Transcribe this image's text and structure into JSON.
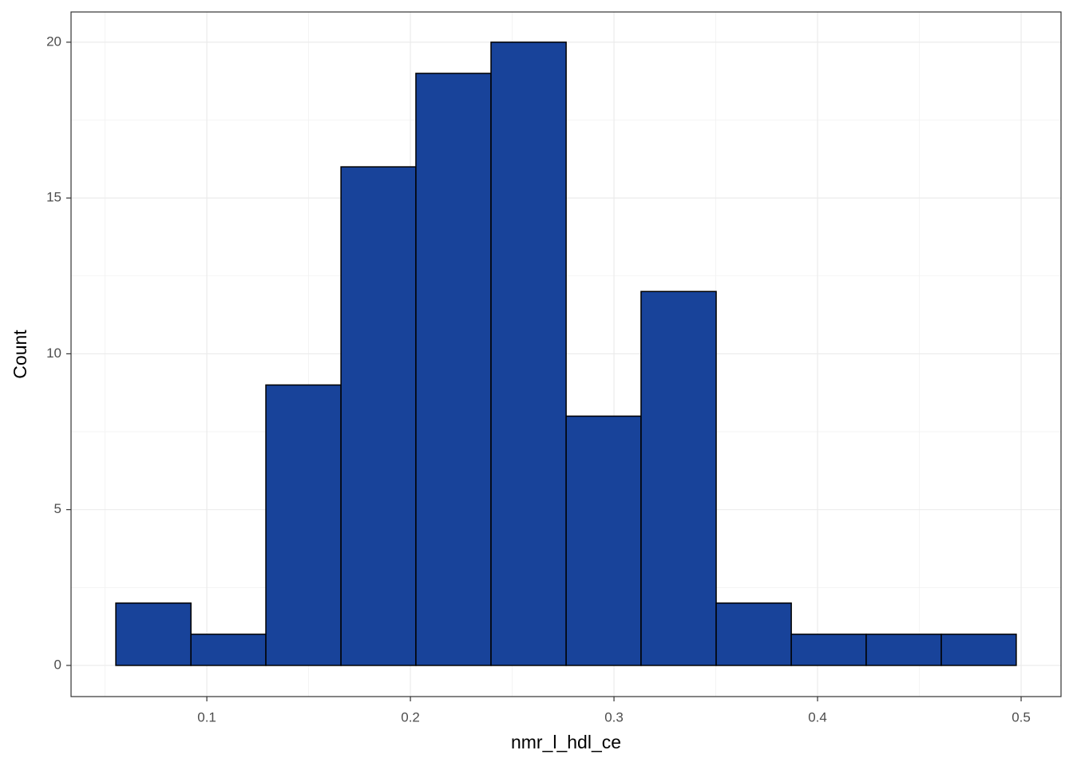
{
  "chart_data": {
    "type": "histogram",
    "x_label": "nmr_l_hdl_ce",
    "y_label": "Count",
    "bins": [
      0.0553,
      0.0922,
      0.129,
      0.1659,
      0.2027,
      0.2396,
      0.2765,
      0.3133,
      0.3502,
      0.3871,
      0.4239,
      0.4608,
      0.4976
    ],
    "values": [
      2,
      1,
      9,
      16,
      19,
      20,
      8,
      12,
      2,
      1,
      1,
      1
    ],
    "color": "#18439a",
    "edge_color": "#000000",
    "xlim": [
      0.0333,
      0.5196
    ],
    "ylim": [
      -1.0,
      20.97
    ],
    "xticks": [
      0.1,
      0.2,
      0.3,
      0.4,
      0.5
    ],
    "yticks": [
      0,
      5,
      10,
      15,
      20
    ],
    "grid": true
  }
}
